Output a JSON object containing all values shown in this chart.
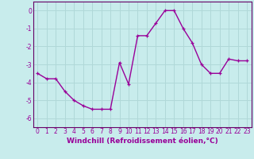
{
  "x": [
    0,
    1,
    2,
    3,
    4,
    5,
    6,
    7,
    8,
    9,
    10,
    11,
    12,
    13,
    14,
    15,
    16,
    17,
    18,
    19,
    20,
    21,
    22,
    23
  ],
  "y": [
    -3.5,
    -3.8,
    -3.8,
    -4.5,
    -5.0,
    -5.3,
    -5.5,
    -5.5,
    -5.5,
    -2.9,
    -4.1,
    -1.4,
    -1.4,
    -0.7,
    0.0,
    0.0,
    -1.0,
    -1.8,
    -3.0,
    -3.5,
    -3.5,
    -2.7,
    -2.8,
    -2.8
  ],
  "line_color": "#990099",
  "marker": "+",
  "marker_size": 3,
  "bg_color": "#c8ecec",
  "grid_color": "#b0d8d8",
  "xlabel": "Windchill (Refroidissement éolien,°C)",
  "xlabel_fontsize": 6.5,
  "ylim": [
    -6.5,
    0.5
  ],
  "xlim": [
    -0.5,
    23.5
  ],
  "yticks": [
    0,
    -1,
    -2,
    -3,
    -4,
    -5,
    -6
  ],
  "xticks": [
    0,
    1,
    2,
    3,
    4,
    5,
    6,
    7,
    8,
    9,
    10,
    11,
    12,
    13,
    14,
    15,
    16,
    17,
    18,
    19,
    20,
    21,
    22,
    23
  ],
  "tick_fontsize": 5.5,
  "line_width": 1.0,
  "spine_color": "#660066"
}
